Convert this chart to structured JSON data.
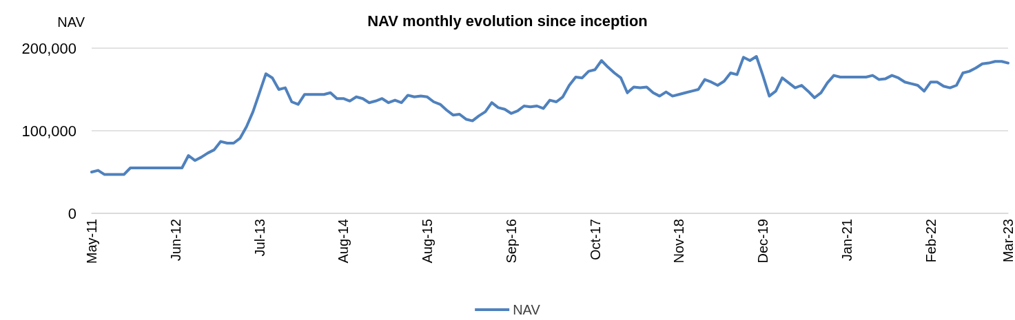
{
  "chart_data": {
    "type": "line",
    "title": "NAV monthly evolution since inception",
    "ylabel": "NAV",
    "categories": [
      "May-11",
      null,
      null,
      null,
      null,
      null,
      null,
      null,
      null,
      null,
      null,
      null,
      null,
      "Jun-12",
      null,
      null,
      null,
      null,
      null,
      null,
      null,
      null,
      null,
      null,
      null,
      null,
      "Jul-13",
      null,
      null,
      null,
      null,
      null,
      null,
      null,
      null,
      null,
      null,
      null,
      null,
      "Aug-14",
      null,
      null,
      null,
      null,
      null,
      null,
      null,
      null,
      null,
      null,
      null,
      null,
      "Aug-15",
      null,
      null,
      null,
      null,
      null,
      null,
      null,
      null,
      null,
      null,
      null,
      null,
      "Sep-16",
      null,
      null,
      null,
      null,
      null,
      null,
      null,
      null,
      null,
      null,
      null,
      null,
      "Oct-17",
      null,
      null,
      null,
      null,
      null,
      null,
      null,
      null,
      null,
      null,
      null,
      null,
      "Nov-18",
      null,
      null,
      null,
      null,
      null,
      null,
      null,
      null,
      null,
      null,
      null,
      null,
      "Dec-19",
      null,
      null,
      null,
      null,
      null,
      null,
      null,
      null,
      null,
      null,
      null,
      null,
      "Jan-21",
      null,
      null,
      null,
      null,
      null,
      null,
      null,
      null,
      null,
      null,
      null,
      null,
      "Feb-22",
      null,
      null,
      null,
      null,
      null,
      null,
      null,
      null,
      null,
      null,
      null,
      "Mar-23"
    ],
    "series": [
      {
        "name": "NAV",
        "color": "#4f81bd",
        "values": [
          50000,
          52000,
          47000,
          47000,
          47000,
          47000,
          55000,
          55000,
          55000,
          55000,
          55000,
          55000,
          55000,
          55000,
          55000,
          70000,
          64000,
          68000,
          73000,
          77000,
          87000,
          85000,
          85000,
          91000,
          105000,
          123000,
          146000,
          169000,
          164000,
          150000,
          152000,
          135000,
          132000,
          144000,
          144000,
          144000,
          144000,
          146000,
          139000,
          139000,
          136000,
          141000,
          139000,
          134000,
          136000,
          139000,
          134000,
          137000,
          134000,
          143000,
          141000,
          142000,
          141000,
          135000,
          132000,
          125000,
          119000,
          120000,
          114000,
          112000,
          118000,
          123000,
          134000,
          128000,
          126000,
          121000,
          124000,
          130000,
          129000,
          130000,
          127000,
          137000,
          135000,
          141000,
          155000,
          165000,
          164000,
          172000,
          174000,
          185000,
          177000,
          170000,
          164000,
          146000,
          153000,
          152000,
          153000,
          146000,
          142000,
          147000,
          142000,
          144000,
          146000,
          148000,
          150000,
          162000,
          159000,
          155000,
          160000,
          170000,
          168000,
          189000,
          185000,
          190000,
          167000,
          142000,
          148000,
          164000,
          158000,
          152000,
          155000,
          148000,
          140000,
          146000,
          158000,
          167000,
          165000,
          165000,
          165000,
          165000,
          165000,
          167000,
          162000,
          163000,
          167000,
          164000,
          159000,
          157000,
          155000,
          148000,
          159000,
          159000,
          154000,
          152000,
          155000,
          170000,
          172000,
          176000,
          181000,
          182000,
          184000,
          184000,
          182000
        ]
      }
    ],
    "ylim": [
      0,
      200000
    ],
    "yticks": [
      0,
      {
        "value": 100000,
        "label": "100,000"
      },
      {
        "value": 200000,
        "label": "200,000"
      }
    ],
    "grid": "y",
    "legend": "bottom",
    "marker": "none",
    "line_style": "solid"
  }
}
